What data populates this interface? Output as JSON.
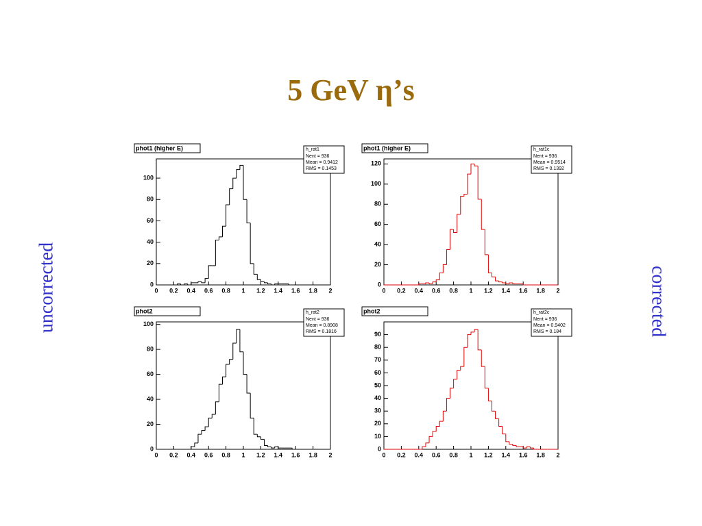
{
  "slide": {
    "title": "5 GeV η’s",
    "left_label": "uncorrected",
    "right_label": "corrected"
  },
  "chart_data": [
    {
      "type": "histogram",
      "title": "phot1 (higher E)",
      "color": "#000000",
      "stats": {
        "name": "h_rat1",
        "lines": [
          "Nent = 936",
          "Mean = 0.9412",
          "RMS = 0.1453"
        ]
      },
      "bins": [
        0,
        0.04,
        0.08,
        0.12,
        0.16,
        0.2,
        0.24,
        0.28,
        0.32,
        0.36,
        0.4,
        0.44,
        0.48,
        0.52,
        0.56,
        0.6,
        0.64,
        0.68,
        0.72,
        0.76,
        0.8,
        0.84,
        0.88,
        0.92,
        0.96,
        1,
        1.04,
        1.08,
        1.12,
        1.16,
        1.2,
        1.24,
        1.28,
        1.32,
        1.36,
        1.4,
        1.44,
        1.48,
        1.52,
        1.56,
        1.6,
        1.64,
        1.68,
        1.72,
        1.76,
        1.8,
        1.84,
        1.88,
        1.92,
        1.96,
        2
      ],
      "values": [
        0,
        0,
        0,
        0,
        0,
        0,
        1,
        0,
        1,
        0,
        2,
        2,
        3,
        2,
        6,
        18,
        18,
        42,
        45,
        55,
        75,
        90,
        100,
        108,
        112,
        80,
        58,
        20,
        10,
        5,
        3,
        2,
        1,
        0,
        1,
        1,
        1,
        1,
        0,
        0,
        0,
        0,
        0,
        0,
        0,
        0,
        0,
        0,
        0,
        0
      ],
      "xlim": [
        0,
        2
      ],
      "xticks": [
        0,
        0.2,
        0.4,
        0.6,
        0.8,
        1,
        1.2,
        1.4,
        1.6,
        1.8,
        2
      ],
      "ylim": [
        0,
        118
      ],
      "yticks": [
        0,
        20,
        40,
        60,
        80,
        100
      ]
    },
    {
      "type": "histogram",
      "title": "phot1 (higher E)",
      "color": "#e00000",
      "stats": {
        "name": "h_rat1c",
        "lines": [
          "Nent = 936",
          "Mean = 0.9514",
          "RMS = 0.1392"
        ]
      },
      "bins": [
        0,
        0.04,
        0.08,
        0.12,
        0.16,
        0.2,
        0.24,
        0.28,
        0.32,
        0.36,
        0.4,
        0.44,
        0.48,
        0.52,
        0.56,
        0.6,
        0.64,
        0.68,
        0.72,
        0.76,
        0.8,
        0.84,
        0.88,
        0.92,
        0.96,
        1,
        1.04,
        1.08,
        1.12,
        1.16,
        1.2,
        1.24,
        1.28,
        1.32,
        1.36,
        1.4,
        1.44,
        1.48,
        1.52,
        1.56,
        1.6,
        1.64,
        1.68,
        1.72,
        1.76,
        1.8,
        1.84,
        1.88,
        1.92,
        1.96,
        2
      ],
      "values": [
        0,
        0,
        0,
        0,
        0,
        0,
        0,
        0,
        0,
        0,
        1,
        1,
        2,
        1,
        3,
        5,
        12,
        20,
        35,
        55,
        52,
        70,
        88,
        90,
        110,
        120,
        118,
        85,
        55,
        30,
        12,
        8,
        4,
        3,
        2,
        1,
        2,
        1,
        1,
        1,
        0,
        0,
        0,
        0,
        0,
        0,
        0,
        0,
        0,
        0
      ],
      "xlim": [
        0,
        2
      ],
      "xticks": [
        0,
        0.2,
        0.4,
        0.6,
        0.8,
        1,
        1.2,
        1.4,
        1.6,
        1.8,
        2
      ],
      "ylim": [
        0,
        125
      ],
      "yticks": [
        0,
        20,
        40,
        60,
        80,
        100,
        120
      ]
    },
    {
      "type": "histogram",
      "title": "phot2",
      "color": "#000000",
      "stats": {
        "name": "h_rat2",
        "lines": [
          "Nent = 936",
          "Mean = 0.8908",
          "RMS = 0.1816"
        ]
      },
      "bins": [
        0,
        0.04,
        0.08,
        0.12,
        0.16,
        0.2,
        0.24,
        0.28,
        0.32,
        0.36,
        0.4,
        0.44,
        0.48,
        0.52,
        0.56,
        0.6,
        0.64,
        0.68,
        0.72,
        0.76,
        0.8,
        0.84,
        0.88,
        0.92,
        0.96,
        1,
        1.04,
        1.08,
        1.12,
        1.16,
        1.2,
        1.24,
        1.28,
        1.32,
        1.36,
        1.4,
        1.44,
        1.48,
        1.52,
        1.56,
        1.6,
        1.64,
        1.68,
        1.72,
        1.76,
        1.8,
        1.84,
        1.88,
        1.92,
        1.96,
        2
      ],
      "values": [
        0,
        0,
        0,
        0,
        0,
        0,
        0,
        0,
        0,
        0,
        2,
        5,
        12,
        15,
        18,
        25,
        28,
        38,
        52,
        58,
        68,
        72,
        85,
        96,
        78,
        60,
        45,
        25,
        12,
        10,
        8,
        3,
        2,
        1,
        2,
        1,
        1,
        1,
        1,
        0,
        0,
        0,
        0,
        0,
        0,
        0,
        0,
        0,
        0,
        0
      ],
      "xlim": [
        0,
        2
      ],
      "xticks": [
        0,
        0.2,
        0.4,
        0.6,
        0.8,
        1,
        1.2,
        1.4,
        1.6,
        1.8,
        2
      ],
      "ylim": [
        0,
        102
      ],
      "yticks": [
        0,
        20,
        40,
        60,
        80,
        100
      ]
    },
    {
      "type": "histogram",
      "title": "phot2",
      "color": "#e00000",
      "stats": {
        "name": "h_rat2c",
        "lines": [
          "Nent = 936",
          "Mean = 0.9402",
          "RMS = 0.184"
        ]
      },
      "bins": [
        0,
        0.04,
        0.08,
        0.12,
        0.16,
        0.2,
        0.24,
        0.28,
        0.32,
        0.36,
        0.4,
        0.44,
        0.48,
        0.52,
        0.56,
        0.6,
        0.64,
        0.68,
        0.72,
        0.76,
        0.8,
        0.84,
        0.88,
        0.92,
        0.96,
        1,
        1.04,
        1.08,
        1.12,
        1.16,
        1.2,
        1.24,
        1.28,
        1.32,
        1.36,
        1.4,
        1.44,
        1.48,
        1.52,
        1.56,
        1.6,
        1.64,
        1.68,
        1.72,
        1.76,
        1.8,
        1.84,
        1.88,
        1.92,
        1.96,
        2
      ],
      "values": [
        0,
        0,
        0,
        0,
        0,
        0,
        0,
        0,
        0,
        0,
        0,
        2,
        5,
        10,
        14,
        18,
        22,
        30,
        40,
        48,
        55,
        62,
        65,
        80,
        90,
        92,
        94,
        78,
        65,
        48,
        38,
        30,
        24,
        18,
        12,
        6,
        4,
        3,
        2,
        2,
        1,
        2,
        1,
        0,
        0,
        0,
        0,
        0,
        0,
        0
      ],
      "xlim": [
        0,
        2
      ],
      "xticks": [
        0,
        0.2,
        0.4,
        0.6,
        0.8,
        1,
        1.2,
        1.4,
        1.6,
        1.8,
        2
      ],
      "ylim": [
        0,
        100
      ],
      "yticks": [
        0,
        10,
        20,
        30,
        40,
        50,
        60,
        70,
        80,
        90
      ]
    }
  ]
}
